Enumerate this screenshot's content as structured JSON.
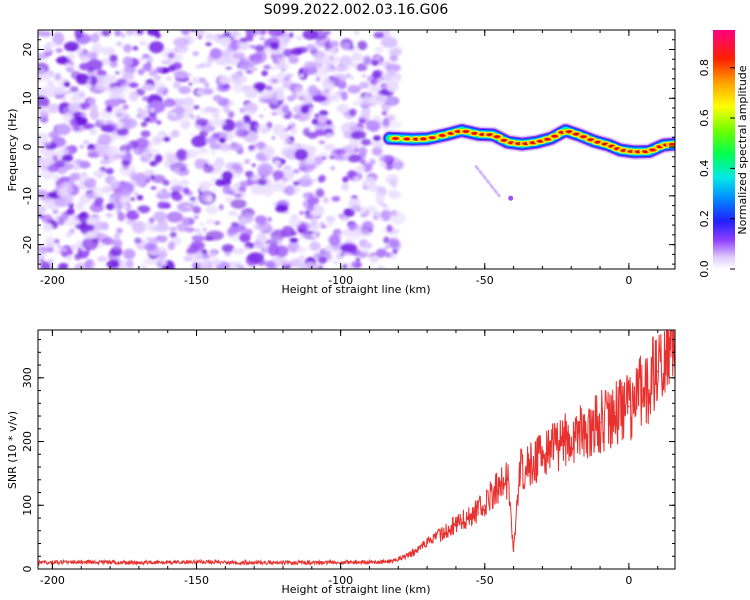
{
  "title": "S099.2022.002.03.16.G06",
  "colors": {
    "snr_line": "#e8302e",
    "scatter_base": "#8a2be2",
    "colormap": [
      "#ffffff",
      "#e8d8ff",
      "#b070ff",
      "#7a20f0",
      "#2020ff",
      "#0090ff",
      "#00e0e0",
      "#00ff60",
      "#60ff00",
      "#ffff00",
      "#ffa000",
      "#ff2000",
      "#ff0080"
    ]
  },
  "chart_data": [
    {
      "type": "heatmap",
      "title": "S099.2022.002.03.16.G06",
      "xlabel": "Height of straight line (km)",
      "ylabel": "Frequency (Hz)",
      "xlim": [
        -205,
        16
      ],
      "ylim": [
        -25,
        24
      ],
      "x_ticks": [
        -200,
        -150,
        -100,
        -50,
        0
      ],
      "y_ticks": [
        20,
        10,
        0,
        -10,
        -20
      ],
      "noise_region_x": [
        -205,
        -82
      ],
      "ridge_start_x": -83,
      "ridge_points": [
        {
          "x": -83,
          "y": 1.8
        },
        {
          "x": -75,
          "y": 1.6
        },
        {
          "x": -70,
          "y": 1.7
        },
        {
          "x": -63,
          "y": 2.6
        },
        {
          "x": -58,
          "y": 3.4
        },
        {
          "x": -52,
          "y": 2.6
        },
        {
          "x": -47,
          "y": 2.5
        },
        {
          "x": -42,
          "y": 1.0
        },
        {
          "x": -37,
          "y": 0.6
        },
        {
          "x": -32,
          "y": 1.0
        },
        {
          "x": -27,
          "y": 1.8
        },
        {
          "x": -22,
          "y": 3.4
        },
        {
          "x": -17,
          "y": 2.4
        },
        {
          "x": -12,
          "y": 1.2
        },
        {
          "x": -7,
          "y": 0.4
        },
        {
          "x": -3,
          "y": -0.6
        },
        {
          "x": 2,
          "y": -1.0
        },
        {
          "x": 7,
          "y": -0.9
        },
        {
          "x": 12,
          "y": 0.4
        },
        {
          "x": 16,
          "y": 0.6
        }
      ],
      "faint_streak": [
        {
          "x": -53,
          "y": -4
        },
        {
          "x": -45,
          "y": -10
        }
      ],
      "colorbar": {
        "label": "Normalized spectral amplitude",
        "range": [
          0,
          0.95
        ],
        "ticks": [
          0.0,
          0.2,
          0.4,
          0.6,
          0.8
        ]
      }
    },
    {
      "type": "line",
      "xlabel": "Height of straight line (km)",
      "ylabel": "SNR (10 * v/v)",
      "xlim": [
        -205,
        16
      ],
      "ylim": [
        0,
        375
      ],
      "x_ticks": [
        -200,
        -150,
        -100,
        -50,
        0
      ],
      "y_ticks": [
        0,
        100,
        200,
        300
      ],
      "x": [
        -205,
        -190,
        -170,
        -150,
        -130,
        -110,
        -90,
        -82,
        -75,
        -70,
        -65,
        -60,
        -55,
        -50,
        -47,
        -45,
        -42,
        -40,
        -38,
        -35,
        -30,
        -25,
        -20,
        -15,
        -10,
        -5,
        0,
        5,
        10,
        16
      ],
      "y": [
        10,
        11,
        10,
        11,
        10,
        10,
        11,
        12,
        25,
        40,
        55,
        70,
        85,
        100,
        120,
        130,
        140,
        28,
        155,
        165,
        175,
        195,
        205,
        215,
        230,
        245,
        255,
        280,
        310,
        370
      ]
    }
  ]
}
